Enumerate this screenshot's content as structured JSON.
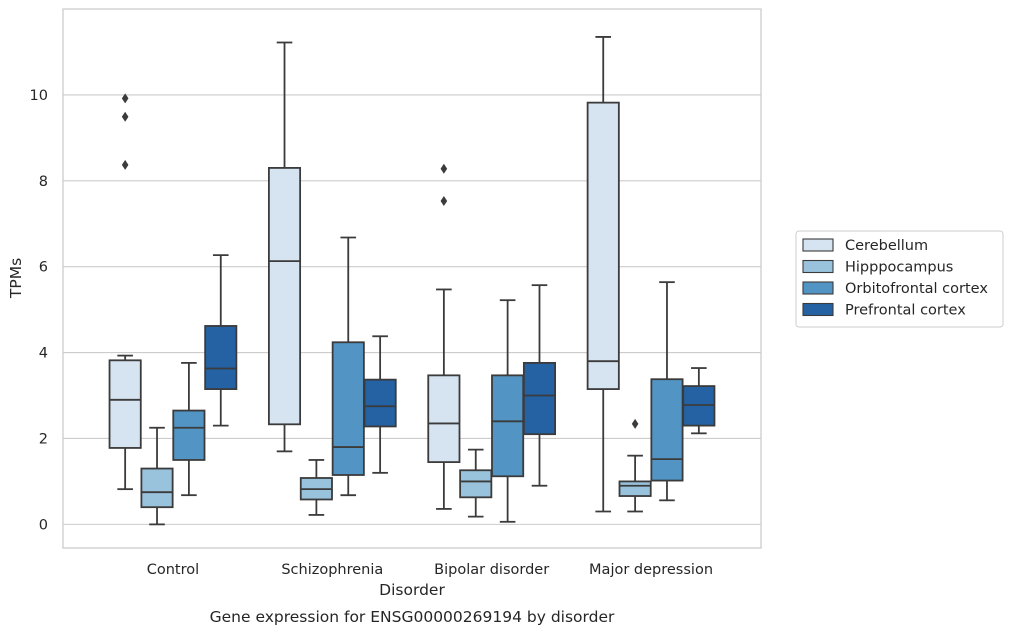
{
  "chart_data": {
    "type": "box",
    "title": "",
    "caption": "Gene expression for ENSG00000269194 by disorder",
    "xlabel": "Disorder",
    "ylabel": "TPMs",
    "ylim": [
      -0.55,
      12.0
    ],
    "yticks": [
      0,
      2,
      4,
      6,
      8,
      10
    ],
    "grid": "horizontal",
    "legend_position": "right",
    "categories": [
      "Control",
      "Schizophrenia",
      "Bipolar disorder",
      "Major depression"
    ],
    "series": [
      {
        "name": "Cerebellum",
        "color": "#d6e3f1",
        "boxes": [
          {
            "whisker_low": 0.82,
            "q1": 1.78,
            "median": 2.9,
            "q3": 3.82,
            "whisker_high": 3.93,
            "outliers": [
              8.37,
              9.49,
              9.92
            ]
          },
          {
            "whisker_low": 1.7,
            "q1": 2.33,
            "median": 6.13,
            "q3": 8.3,
            "whisker_high": 11.22,
            "outliers": []
          },
          {
            "whisker_low": 0.36,
            "q1": 1.45,
            "median": 2.35,
            "q3": 3.47,
            "whisker_high": 5.47,
            "outliers": [
              7.53,
              8.28
            ]
          },
          {
            "whisker_low": 0.3,
            "q1": 3.15,
            "median": 3.8,
            "q3": 9.82,
            "whisker_high": 11.35,
            "outliers": []
          }
        ]
      },
      {
        "name": "Hipppocampus",
        "color": "#99c2dd",
        "boxes": [
          {
            "whisker_low": 0.0,
            "q1": 0.4,
            "median": 0.75,
            "q3": 1.3,
            "whisker_high": 2.25,
            "outliers": []
          },
          {
            "whisker_low": 0.22,
            "q1": 0.58,
            "median": 0.82,
            "q3": 1.08,
            "whisker_high": 1.5,
            "outliers": []
          },
          {
            "whisker_low": 0.18,
            "q1": 0.63,
            "median": 1.0,
            "q3": 1.26,
            "whisker_high": 1.74,
            "outliers": []
          },
          {
            "whisker_low": 0.3,
            "q1": 0.66,
            "median": 0.9,
            "q3": 1.0,
            "whisker_high": 1.6,
            "outliers": [
              2.34
            ]
          }
        ]
      },
      {
        "name": "Orbitofrontal cortex",
        "color": "#5294c3",
        "boxes": [
          {
            "whisker_low": 0.68,
            "q1": 1.5,
            "median": 2.25,
            "q3": 2.65,
            "whisker_high": 3.76,
            "outliers": []
          },
          {
            "whisker_low": 0.68,
            "q1": 1.15,
            "median": 1.8,
            "q3": 4.24,
            "whisker_high": 6.68,
            "outliers": []
          },
          {
            "whisker_low": 0.06,
            "q1": 1.12,
            "median": 2.4,
            "q3": 3.47,
            "whisker_high": 5.22,
            "outliers": []
          },
          {
            "whisker_low": 0.56,
            "q1": 1.02,
            "median": 1.52,
            "q3": 3.38,
            "whisker_high": 5.64,
            "outliers": []
          }
        ]
      },
      {
        "name": "Prefrontal cortex",
        "color": "#2462a3",
        "boxes": [
          {
            "whisker_low": 2.3,
            "q1": 3.15,
            "median": 3.63,
            "q3": 4.62,
            "whisker_high": 6.27,
            "outliers": []
          },
          {
            "whisker_low": 1.2,
            "q1": 2.28,
            "median": 2.75,
            "q3": 3.37,
            "whisker_high": 4.38,
            "outliers": []
          },
          {
            "whisker_low": 0.9,
            "q1": 2.1,
            "median": 3.0,
            "q3": 3.76,
            "whisker_high": 5.57,
            "outliers": []
          },
          {
            "whisker_low": 2.12,
            "q1": 2.3,
            "median": 2.78,
            "q3": 3.22,
            "whisker_high": 3.64,
            "outliers": []
          }
        ]
      }
    ]
  }
}
